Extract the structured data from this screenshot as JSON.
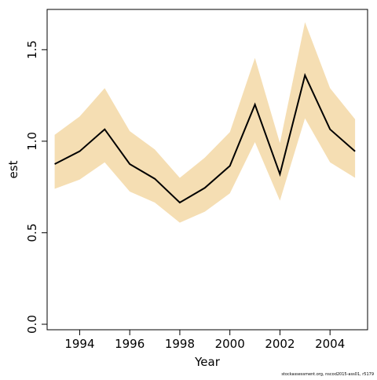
{
  "chart_data": {
    "type": "area",
    "title": "",
    "xlabel": "Year",
    "ylabel": "est",
    "x": [
      1993,
      1994,
      1995,
      1996,
      1997,
      1998,
      1999,
      2000,
      2001,
      2002,
      2003,
      2004,
      2005
    ],
    "series": [
      {
        "values": [
          0.875,
          0.945,
          1.065,
          0.875,
          0.795,
          0.665,
          0.745,
          0.865,
          1.2,
          0.82,
          1.36,
          1.065,
          0.945
        ]
      }
    ],
    "band": {
      "upper": [
        1.035,
        1.135,
        1.29,
        1.055,
        0.955,
        0.8,
        0.91,
        1.05,
        1.455,
        0.99,
        1.65,
        1.29,
        1.12
      ],
      "lower": [
        0.74,
        0.79,
        0.885,
        0.725,
        0.665,
        0.555,
        0.615,
        0.715,
        0.995,
        0.675,
        1.125,
        0.885,
        0.8
      ]
    },
    "xlim": [
      1992.7,
      2005.5
    ],
    "ylim": [
      -0.03,
      1.72
    ],
    "xticks": [
      "1994",
      "1996",
      "1998",
      "2000",
      "2002",
      "2004"
    ],
    "yticks": [
      "0.0",
      "0.5",
      "1.0",
      "1.5"
    ],
    "grid": false,
    "colors": {
      "band": "#f5deb3",
      "line": "#000000",
      "axis": "#000000"
    }
  },
  "footer": {
    "text": "stockassessment.org, nscod2015-ass01, r5179"
  }
}
